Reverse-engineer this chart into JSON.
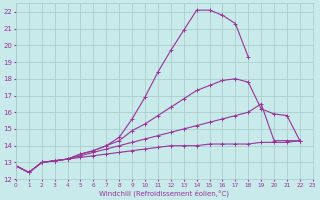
{
  "background_color": "#c8eaea",
  "grid_color": "#a8c8c8",
  "line_color": "#993399",
  "xlabel": "Windchill (Refroidissement éolien,°C)",
  "xlabel_color": "#993399",
  "xlim": [
    0,
    23
  ],
  "ylim": [
    12,
    22.5
  ],
  "yticks": [
    12,
    13,
    14,
    15,
    16,
    17,
    18,
    19,
    20,
    21,
    22
  ],
  "xticks": [
    0,
    1,
    2,
    3,
    4,
    5,
    6,
    7,
    8,
    9,
    10,
    11,
    12,
    13,
    14,
    15,
    16,
    17,
    18,
    19,
    20,
    21,
    22,
    23
  ],
  "series": [
    {
      "x": [
        0,
        1,
        2,
        3,
        4,
        5,
        6,
        7,
        8,
        9,
        10,
        11,
        12,
        13,
        14,
        15,
        16,
        17,
        18
      ],
      "y": [
        12.8,
        12.4,
        13.0,
        13.1,
        13.2,
        13.5,
        13.7,
        14.0,
        14.5,
        15.6,
        16.9,
        18.4,
        19.7,
        20.9,
        22.1,
        22.1,
        21.8,
        21.3,
        19.3
      ]
    },
    {
      "x": [
        0,
        1,
        2,
        3,
        4,
        5,
        6,
        7,
        8,
        9,
        10,
        11,
        12,
        13,
        14,
        15,
        16,
        17,
        18,
        19,
        20,
        21,
        22
      ],
      "y": [
        12.8,
        12.4,
        13.0,
        13.1,
        13.2,
        13.5,
        13.7,
        14.0,
        14.3,
        14.9,
        15.3,
        15.8,
        16.3,
        16.8,
        17.3,
        17.6,
        17.9,
        18.0,
        17.8,
        16.2,
        15.9,
        15.8,
        14.3
      ]
    },
    {
      "x": [
        0,
        1,
        2,
        3,
        4,
        5,
        6,
        7,
        8,
        9,
        10,
        11,
        12,
        13,
        14,
        15,
        16,
        17,
        18,
        19,
        20,
        21,
        22
      ],
      "y": [
        12.8,
        12.4,
        13.0,
        13.1,
        13.2,
        13.4,
        13.6,
        13.8,
        14.0,
        14.2,
        14.4,
        14.6,
        14.8,
        15.0,
        15.2,
        15.4,
        15.6,
        15.8,
        16.0,
        16.5,
        14.3,
        14.3,
        14.3
      ]
    },
    {
      "x": [
        0,
        1,
        2,
        3,
        4,
        5,
        6,
        7,
        8,
        9,
        10,
        11,
        12,
        13,
        14,
        15,
        16,
        17,
        18,
        19,
        20,
        21,
        22
      ],
      "y": [
        12.8,
        12.4,
        13.0,
        13.1,
        13.2,
        13.3,
        13.4,
        13.5,
        13.6,
        13.7,
        13.8,
        13.9,
        14.0,
        14.0,
        14.0,
        14.1,
        14.1,
        14.1,
        14.1,
        14.2,
        14.2,
        14.2,
        14.3
      ]
    }
  ]
}
